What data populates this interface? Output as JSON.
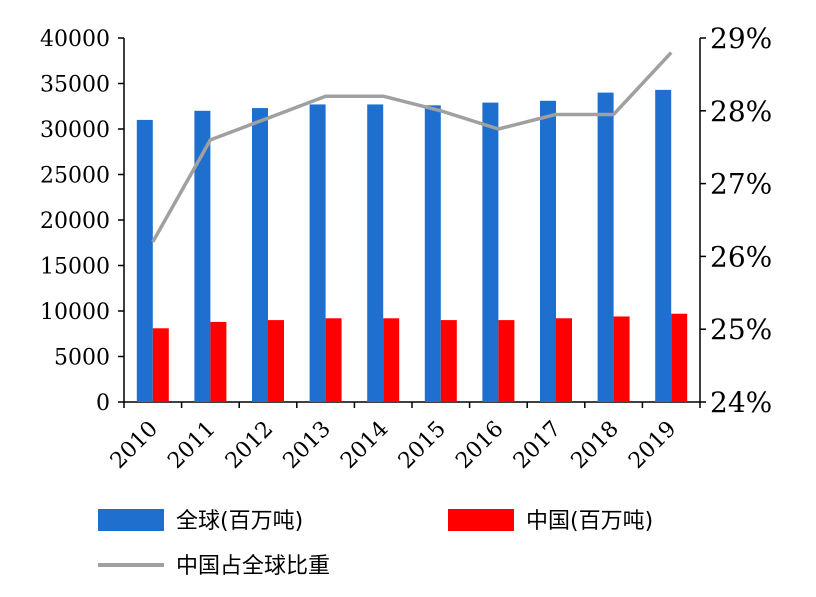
{
  "chart_data": {
    "type": "bar",
    "categories": [
      "2010",
      "2011",
      "2012",
      "2013",
      "2014",
      "2015",
      "2016",
      "2017",
      "2018",
      "2019"
    ],
    "series": [
      {
        "name": "全球(百万吨)",
        "kind": "bar",
        "axis": "left",
        "color": "#1f6fcf",
        "values": [
          31000,
          32000,
          32300,
          32700,
          32700,
          32600,
          32900,
          33100,
          34000,
          34300
        ]
      },
      {
        "name": "中国(百万吨)",
        "kind": "bar",
        "axis": "left",
        "color": "#ff0000",
        "values": [
          8100,
          8800,
          9000,
          9200,
          9200,
          9000,
          9000,
          9200,
          9400,
          9700
        ]
      },
      {
        "name": "中国占全球比重",
        "kind": "line",
        "axis": "right",
        "color": "#a0a0a0",
        "values": [
          26.2,
          27.6,
          27.9,
          28.2,
          28.2,
          28.0,
          27.75,
          27.95,
          27.95,
          28.8
        ]
      }
    ],
    "y_left": {
      "range": [
        0,
        40000
      ],
      "ticks": [
        "0",
        "5000",
        "10000",
        "15000",
        "20000",
        "25000",
        "30000",
        "35000",
        "40000"
      ]
    },
    "y_right": {
      "range": [
        24,
        29
      ],
      "ticks": [
        "24%",
        "25%",
        "26%",
        "27%",
        "28%",
        "29%"
      ]
    },
    "legend_placement": "bottom",
    "grid": false
  }
}
